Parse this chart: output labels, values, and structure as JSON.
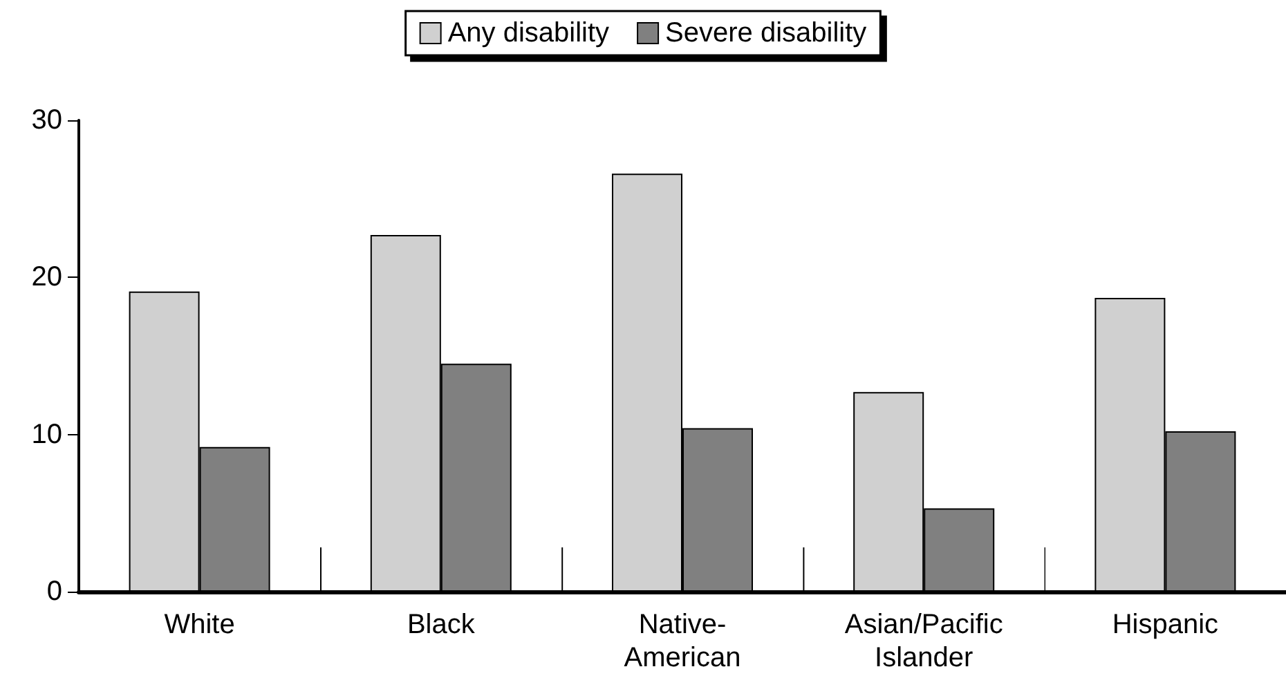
{
  "chart_data": {
    "type": "bar",
    "categories": [
      "White",
      "Black",
      "Native-\nAmerican",
      "Asian/Pacific\nIslander",
      "Hispanic"
    ],
    "series": [
      {
        "name": "Any disability",
        "color": "#d0d0d0",
        "values": [
          19.1,
          22.7,
          26.6,
          12.7,
          18.7
        ]
      },
      {
        "name": "Severe disability",
        "color": "#808080",
        "values": [
          9.2,
          14.5,
          10.4,
          5.3,
          10.2
        ]
      }
    ],
    "ylim": [
      0,
      30
    ],
    "yticks": [
      0,
      10,
      20,
      30
    ],
    "grid": false,
    "legend": "top"
  }
}
